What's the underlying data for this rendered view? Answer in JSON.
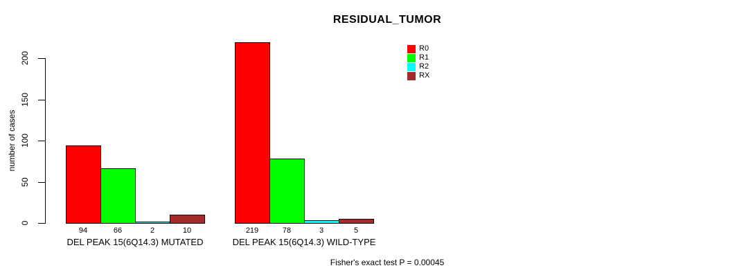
{
  "chart_data": {
    "type": "bar",
    "title": "RESIDUAL_TUMOR",
    "xlabel": "",
    "ylabel": "number of cases",
    "ylim": [
      0,
      220
    ],
    "yticks": [
      0,
      50,
      100,
      150,
      200
    ],
    "grid": false,
    "legend_position": "top-right",
    "categories": [
      "DEL PEAK 15(6Q14.3) MUTATED",
      "DEL PEAK 15(6Q14.3) WILD-TYPE"
    ],
    "series": [
      {
        "name": "R0",
        "color": "#ff0000",
        "values": [
          94,
          219
        ]
      },
      {
        "name": "R1",
        "color": "#00ff00",
        "values": [
          66,
          78
        ]
      },
      {
        "name": "R2",
        "color": "#00ffff",
        "values": [
          2,
          3
        ]
      },
      {
        "name": "RX",
        "color": "#a52a2a",
        "values": [
          10,
          5
        ]
      }
    ],
    "bar_value_labels": [
      [
        "94",
        "66",
        "2",
        "10"
      ],
      [
        "219",
        "78",
        "3",
        "5"
      ]
    ],
    "annotation": "Fisher's exact test P = 0.00045",
    "axis_color": "#000000",
    "bar_border_color": "#000000"
  }
}
